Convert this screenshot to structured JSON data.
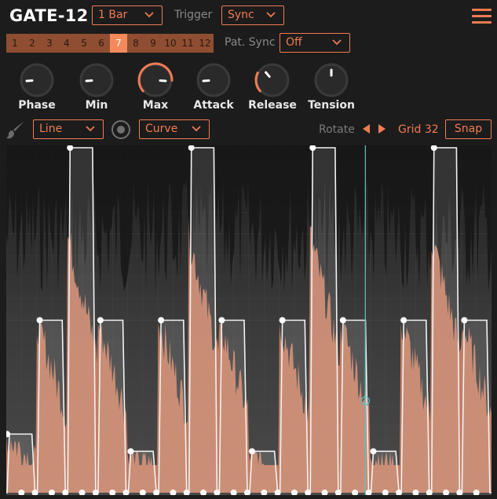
{
  "header": {
    "title": "GATE-12",
    "length_value": "1 Bar",
    "trigger_label": "Trigger",
    "trigger_value": "Sync",
    "pat_sync_label": "Pat. Sync",
    "pat_sync_value": "Off"
  },
  "patterns": {
    "items": [
      "1",
      "2",
      "3",
      "4",
      "5",
      "6",
      "7",
      "8",
      "9",
      "10",
      "11",
      "12"
    ],
    "active_index": 6
  },
  "knobs": [
    {
      "label": "Phase",
      "value": 0.15
    },
    {
      "label": "Min",
      "value": 0.15
    },
    {
      "label": "Max",
      "value": 0.85
    },
    {
      "label": "Attack",
      "value": 0.15
    },
    {
      "label": "Release",
      "value": 0.35
    },
    {
      "label": "Tension",
      "value": 0.5
    }
  ],
  "toolbar": {
    "line_value": "Line",
    "curve_value": "Curve",
    "rotate_label": "Rotate",
    "grid_label": "Grid 32",
    "snap_label": "Snap"
  },
  "colors": {
    "accent": "#f07c52",
    "pattern_bg": "#8f4d31",
    "pattern_active": "#f48a5c",
    "waveform": "#d98a6b"
  },
  "envelope": {
    "levels": [
      0.17,
      0.5,
      1.0,
      0.5,
      0.12,
      0.5,
      1.0,
      0.5,
      0.12,
      0.5,
      1.0,
      0.5,
      0.12,
      0.5,
      1.0,
      0.5
    ],
    "playhead_position": 0.74
  }
}
